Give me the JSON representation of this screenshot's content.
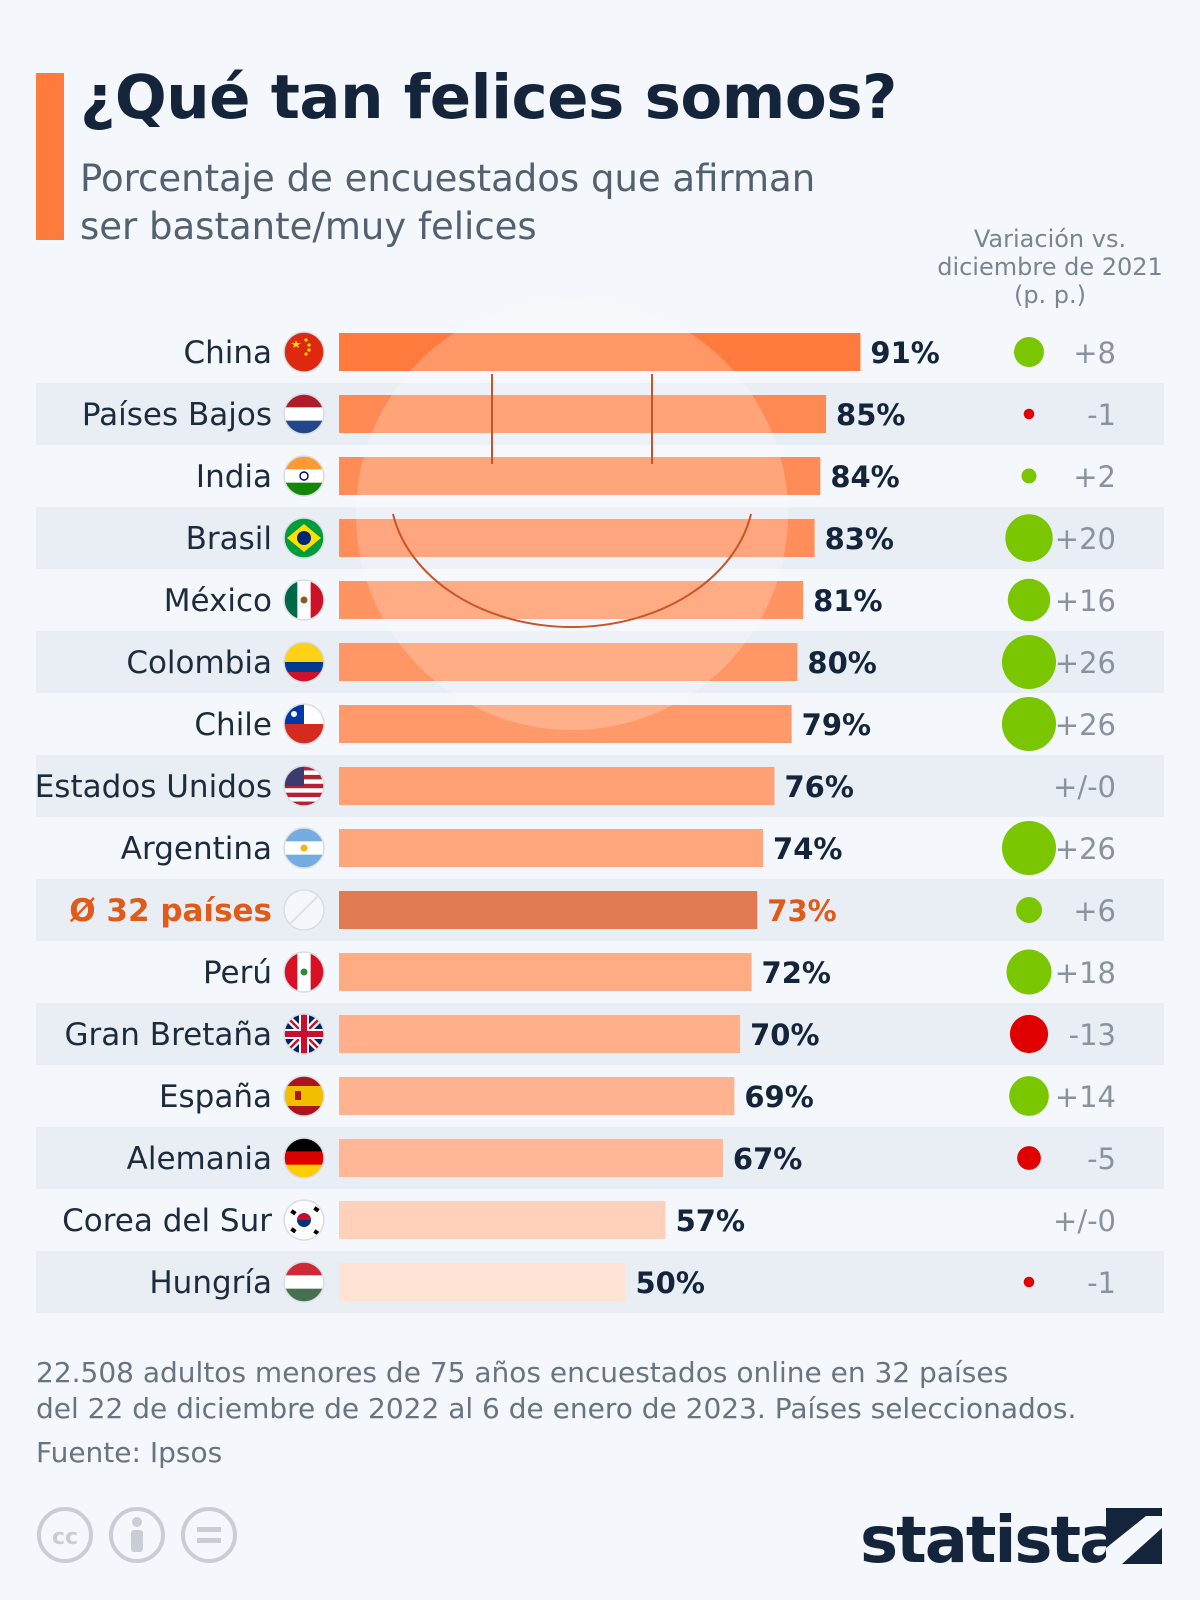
{
  "title": "¿Qué tan felices somos?",
  "subtitle": "Porcentaje de encuestados que afirman ser bastante/muy felices",
  "variation_header": [
    "Variación vs.",
    "diciembre de 2021",
    "(p. p.)"
  ],
  "footnote": [
    "22.508 adultos menores de 75 años encuestados online en 32 países",
    "del 22 de diciembre de 2022 al 6 de enero de 2023. Países seleccionados."
  ],
  "source": "Fuente: Ipsos",
  "brand": "statista",
  "license_icons": [
    "cc-icon",
    "attribution-icon",
    "no-derivatives-icon"
  ],
  "colors": {
    "bar_high": "#ff7a3d",
    "bar_low": "#ffe3d5",
    "bar_highlight": "#e07a52",
    "highlight_text": "#e05a1a",
    "positive_dot": "#7ac600",
    "negative_dot": "#e00000",
    "brand": "#14243b"
  },
  "chart_data": {
    "type": "bar",
    "orientation": "horizontal",
    "categories": [
      "China",
      "Países Bajos",
      "India",
      "Brasil",
      "México",
      "Colombia",
      "Chile",
      "Estados Unidos",
      "Argentina",
      "Ø 32 países",
      "Perú",
      "Gran Bretaña",
      "España",
      "Alemania",
      "Corea del Sur",
      "Hungría"
    ],
    "flags": [
      "china-flag-icon",
      "netherlands-flag-icon",
      "india-flag-icon",
      "brazil-flag-icon",
      "mexico-flag-icon",
      "colombia-flag-icon",
      "chile-flag-icon",
      "usa-flag-icon",
      "argentina-flag-icon",
      "average-icon",
      "peru-flag-icon",
      "uk-flag-icon",
      "spain-flag-icon",
      "germany-flag-icon",
      "south-korea-flag-icon",
      "hungary-flag-icon"
    ],
    "values": [
      91,
      85,
      84,
      83,
      81,
      80,
      79,
      76,
      74,
      73,
      72,
      70,
      69,
      67,
      57,
      50
    ],
    "value_labels": [
      "91%",
      "85%",
      "84%",
      "83%",
      "81%",
      "80%",
      "79%",
      "76%",
      "74%",
      "73%",
      "72%",
      "70%",
      "69%",
      "67%",
      "57%",
      "50%"
    ],
    "change": [
      8,
      -1,
      2,
      20,
      16,
      26,
      26,
      0,
      26,
      6,
      18,
      -13,
      14,
      -5,
      0,
      -1
    ],
    "change_labels": [
      "+8",
      "-1",
      "+2",
      "+20",
      "+16",
      "+26",
      "+26",
      "+/-0",
      "+26",
      "+6",
      "+18",
      "-13",
      "+14",
      "-5",
      "+/-0",
      "-1"
    ],
    "highlight_index": 9,
    "xlim": [
      0,
      100
    ],
    "grid": false
  }
}
